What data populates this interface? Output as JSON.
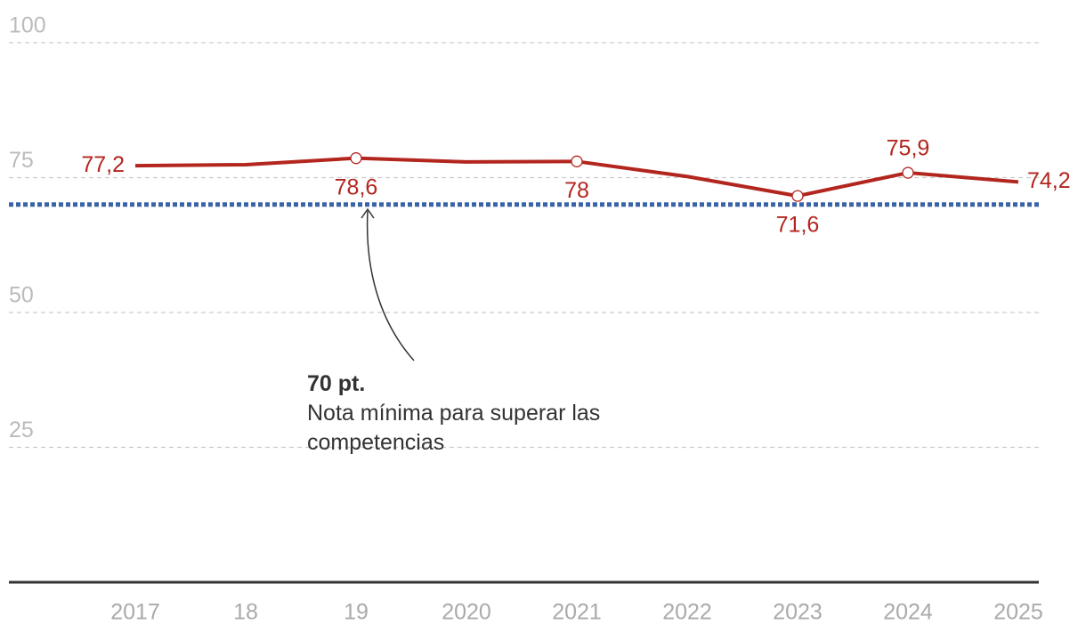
{
  "chart_data": {
    "type": "line",
    "categories": [
      "2017",
      "18",
      "19",
      "2020",
      "2021",
      "2022",
      "2023",
      "2024",
      "2025"
    ],
    "series": [
      {
        "color": "#b2261e",
        "values": [
          77.2,
          77.4,
          78.6,
          77.9,
          78,
          75.2,
          71.6,
          75.9,
          74.2
        ],
        "value_labels": [
          "77,2",
          null,
          "78,6",
          null,
          "78",
          null,
          "71,6",
          "75,9",
          "74,2"
        ]
      }
    ],
    "ylim": [
      0,
      100
    ],
    "yticks": [
      25,
      50,
      75,
      100
    ],
    "grid": true,
    "threshold": {
      "value": 70,
      "color": "#3a64a8",
      "label": "70 pt.",
      "text": "Nota mínima para superar las competencias"
    }
  }
}
